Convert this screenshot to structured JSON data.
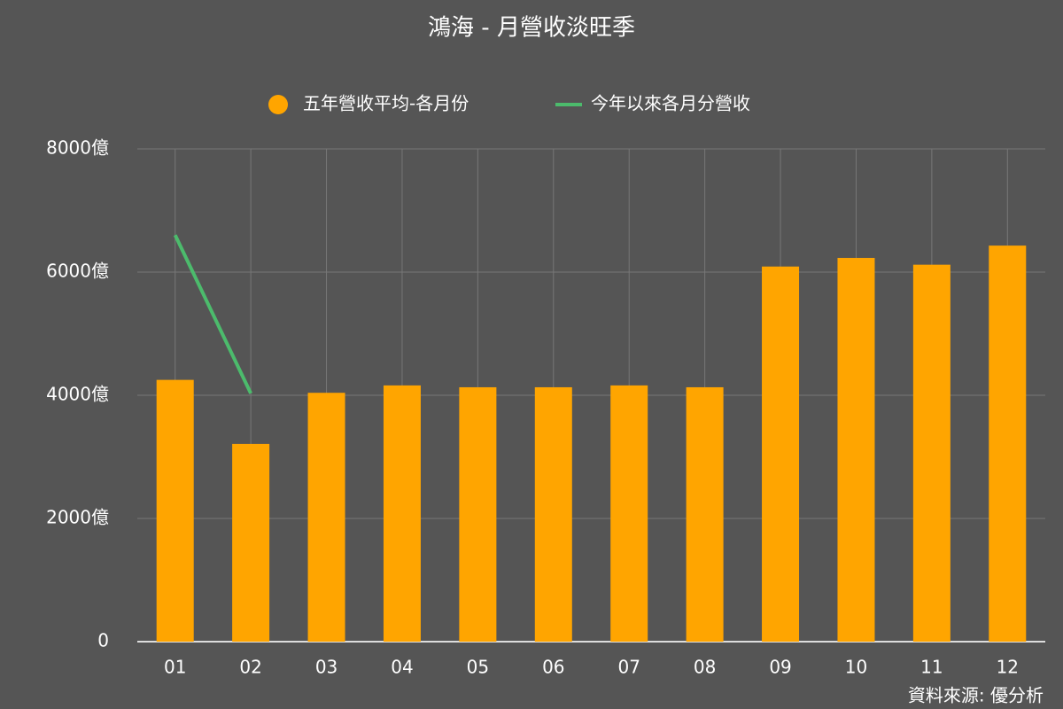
{
  "chart_data": {
    "type": "bar",
    "title": "鴻海 - 月營收淡旺季",
    "categories": [
      "01",
      "02",
      "03",
      "04",
      "05",
      "06",
      "07",
      "08",
      "09",
      "10",
      "11",
      "12"
    ],
    "series": [
      {
        "name": "五年營收平均-各月份",
        "type": "bar",
        "color": "#ffa500",
        "values": [
          4250,
          3210,
          4040,
          4160,
          4130,
          4130,
          4160,
          4130,
          6090,
          6230,
          6120,
          6430
        ]
      },
      {
        "name": "今年以來各月分營收",
        "type": "line",
        "color": "#4cbb6c",
        "values": [
          6600,
          4030,
          null,
          null,
          null,
          null,
          null,
          null,
          null,
          null,
          null,
          null
        ]
      }
    ],
    "ylim": [
      0,
      8000
    ],
    "yticks": [
      0,
      {
        "value": 2000,
        "label": "2000億"
      },
      {
        "value": 4000,
        "label": "4000億"
      },
      {
        "value": 6000,
        "label": "6000億"
      },
      {
        "value": 8000,
        "label": "8000億"
      }
    ],
    "grid": true,
    "legend": "top",
    "source": "資料來源: 優分析"
  }
}
